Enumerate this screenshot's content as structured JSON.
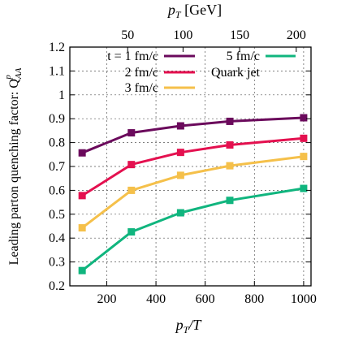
{
  "chart_data": {
    "type": "line",
    "x": [
      100,
      300,
      500,
      700,
      1000
    ],
    "xlabel_main": "p",
    "xlabel_sub": "T",
    "xlabel_suffix": "/T",
    "top_axis_label": "p",
    "top_axis_sub": "T",
    "top_axis_unit": " [GeV]",
    "ylabel_prefix": "Leading parton quenching factor: Q",
    "ylabel_sup": "p",
    "ylabel_sub": "AA",
    "xlim": [
      50,
      1030
    ],
    "ylim": [
      0.2,
      1.2
    ],
    "x_ticks": [
      200,
      400,
      600,
      800,
      1000
    ],
    "y_ticks": [
      0.2,
      0.3,
      0.4,
      0.5,
      0.6,
      0.7,
      0.8,
      0.9,
      1.0,
      1.1,
      1.2
    ],
    "y_tick_labels": [
      "0.2",
      "0.3",
      "0.4",
      "0.5",
      "0.6",
      "0.7",
      "0.8",
      "0.9",
      "1",
      "1.1",
      "1.2"
    ],
    "top_ticks_data": [
      285,
      510,
      740,
      970
    ],
    "top_tick_labels": [
      "50",
      "100",
      "150",
      "200"
    ],
    "grid": true,
    "legend_position": "top",
    "series": [
      {
        "name": "t = 1 fm/c",
        "color": "#6b0a5c",
        "values": [
          0.757,
          0.841,
          0.87,
          0.889,
          0.904
        ]
      },
      {
        "name": "2 fm/c",
        "color": "#e4104f",
        "values": [
          0.578,
          0.708,
          0.759,
          0.79,
          0.818
        ]
      },
      {
        "name": "3 fm/c",
        "color": "#f5c04a",
        "values": [
          0.443,
          0.6,
          0.663,
          0.703,
          0.742
        ]
      },
      {
        "name": "5 fm/c",
        "color": "#10b57e",
        "values": [
          0.264,
          0.426,
          0.506,
          0.558,
          0.608
        ]
      }
    ],
    "extra_legend": {
      "name": "Quark jet",
      "color": "#e4104f"
    }
  }
}
